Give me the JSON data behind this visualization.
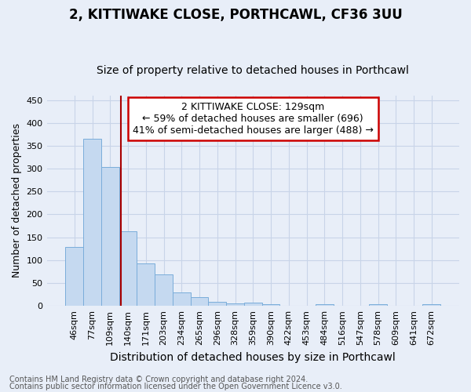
{
  "title": "2, KITTIWAKE CLOSE, PORTHCAWL, CF36 3UU",
  "subtitle": "Size of property relative to detached houses in Porthcawl",
  "xlabel": "Distribution of detached houses by size in Porthcawl",
  "ylabel": "Number of detached properties",
  "bar_labels": [
    "46sqm",
    "77sqm",
    "109sqm",
    "140sqm",
    "171sqm",
    "203sqm",
    "234sqm",
    "265sqm",
    "296sqm",
    "328sqm",
    "359sqm",
    "390sqm",
    "422sqm",
    "453sqm",
    "484sqm",
    "516sqm",
    "547sqm",
    "578sqm",
    "609sqm",
    "641sqm",
    "672sqm"
  ],
  "bar_values": [
    128,
    365,
    304,
    163,
    93,
    69,
    30,
    20,
    9,
    6,
    8,
    4,
    1,
    0,
    3,
    0,
    0,
    3,
    0,
    0,
    3
  ],
  "bar_color": "#c5d9f0",
  "bar_edge_color": "#7aadda",
  "vline_x": 2.62,
  "vline_color": "#aa0000",
  "annotation_line1": "2 KITTIWAKE CLOSE: 129sqm",
  "annotation_line2": "← 59% of detached houses are smaller (696)",
  "annotation_line3": "41% of semi-detached houses are larger (488) →",
  "annotation_box_color": "#ffffff",
  "annotation_box_edge_color": "#cc0000",
  "ylim": [
    0,
    460
  ],
  "yticks": [
    0,
    50,
    100,
    150,
    200,
    250,
    300,
    350,
    400,
    450
  ],
  "grid_color": "#c8d4e8",
  "background_color": "#e8eef8",
  "footer1": "Contains HM Land Registry data © Crown copyright and database right 2024.",
  "footer2": "Contains public sector information licensed under the Open Government Licence v3.0.",
  "title_fontsize": 12,
  "subtitle_fontsize": 10,
  "xlabel_fontsize": 10,
  "ylabel_fontsize": 9,
  "tick_fontsize": 8,
  "annotation_fontsize": 9,
  "footer_fontsize": 7
}
